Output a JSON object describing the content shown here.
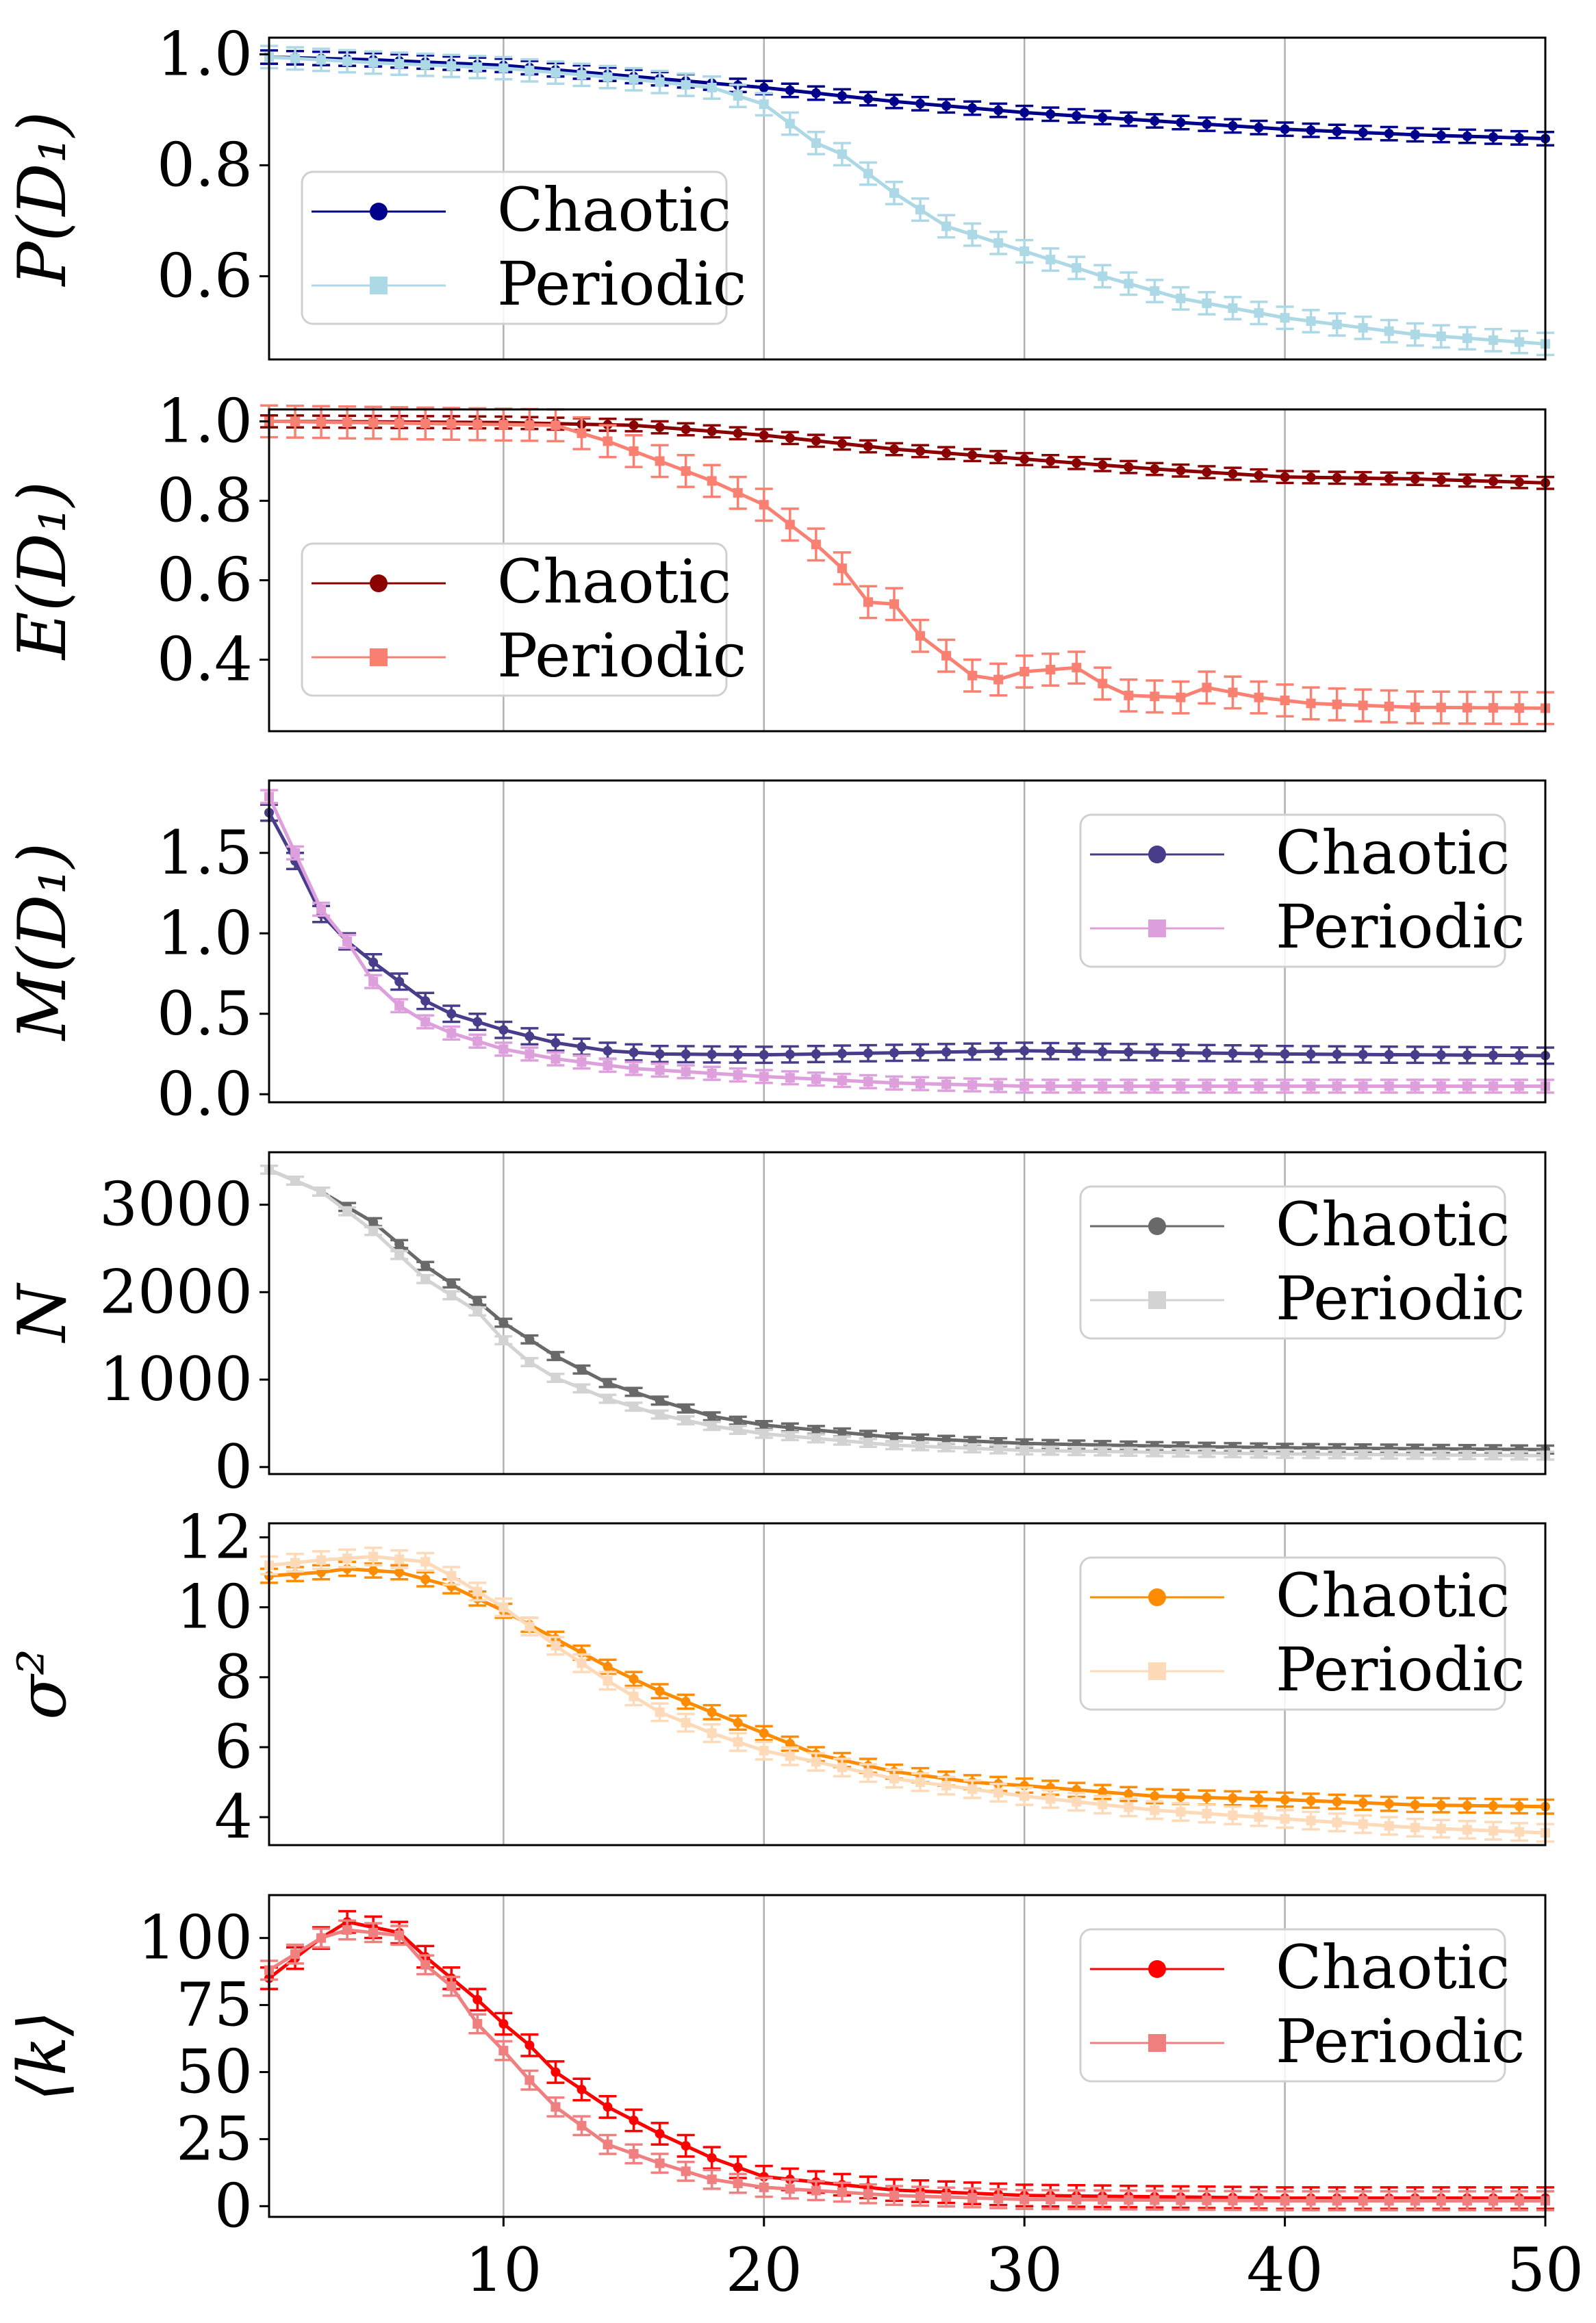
{
  "chart_data": [
    {
      "type": "line",
      "ylabel": "P(D₁)",
      "ylim": [
        0.45,
        1.03
      ],
      "xlim": [
        1,
        50
      ],
      "yticks": [
        0.6,
        0.8,
        1.0
      ],
      "ytick_labels": [
        "0.6",
        "0.8",
        "1.0"
      ],
      "legend_position": "lower-left",
      "grid_x": [
        10,
        20,
        30,
        40
      ],
      "series": [
        {
          "name": "Chaotic",
          "marker": "circle",
          "color": "#00008b",
          "anchors": [
            [
              1,
              0.995
            ],
            [
              5,
              0.99
            ],
            [
              10,
              0.98
            ],
            [
              15,
              0.96
            ],
            [
              20,
              0.94
            ],
            [
              25,
              0.915
            ],
            [
              30,
              0.895
            ],
            [
              35,
              0.88
            ],
            [
              40,
              0.865
            ],
            [
              45,
              0.855
            ],
            [
              50,
              0.848
            ]
          ],
          "err": 0.012
        },
        {
          "name": "Periodic",
          "marker": "square",
          "color": "#add8e6",
          "anchors": [
            [
              1,
              0.995
            ],
            [
              5,
              0.985
            ],
            [
              10,
              0.975
            ],
            [
              15,
              0.955
            ],
            [
              18,
              0.94
            ],
            [
              20,
              0.91
            ],
            [
              22,
              0.84
            ],
            [
              23,
              0.82
            ],
            [
              25,
              0.75
            ],
            [
              27,
              0.69
            ],
            [
              30,
              0.645
            ],
            [
              33,
              0.6
            ],
            [
              36,
              0.56
            ],
            [
              40,
              0.525
            ],
            [
              45,
              0.495
            ],
            [
              50,
              0.478
            ]
          ],
          "err": 0.02
        }
      ]
    },
    {
      "type": "line",
      "ylabel": "E(D₁)",
      "ylim": [
        0.22,
        1.03
      ],
      "xlim": [
        1,
        50
      ],
      "yticks": [
        0.4,
        0.6,
        0.8,
        1.0
      ],
      "ytick_labels": [
        "0.4",
        "0.6",
        "0.8",
        "1.0"
      ],
      "legend_position": "lower-left",
      "grid_x": [
        10,
        20,
        30,
        40
      ],
      "series": [
        {
          "name": "Chaotic",
          "marker": "circle",
          "color": "#8b0000",
          "anchors": [
            [
              1,
              1.0
            ],
            [
              10,
              0.997
            ],
            [
              15,
              0.99
            ],
            [
              20,
              0.965
            ],
            [
              25,
              0.93
            ],
            [
              30,
              0.905
            ],
            [
              35,
              0.88
            ],
            [
              40,
              0.86
            ],
            [
              45,
              0.855
            ],
            [
              50,
              0.845
            ]
          ],
          "err": 0.015
        },
        {
          "name": "Periodic",
          "marker": "square",
          "color": "#fa8072",
          "anchors": [
            [
              1,
              1.0
            ],
            [
              12,
              0.99
            ],
            [
              14,
              0.95
            ],
            [
              16,
              0.9
            ],
            [
              18,
              0.85
            ],
            [
              20,
              0.79
            ],
            [
              22,
              0.69
            ],
            [
              23,
              0.63
            ],
            [
              24,
              0.545
            ],
            [
              25,
              0.54
            ],
            [
              26,
              0.46
            ],
            [
              27,
              0.41
            ],
            [
              28,
              0.36
            ],
            [
              29,
              0.35
            ],
            [
              30,
              0.37
            ],
            [
              31,
              0.375
            ],
            [
              32,
              0.38
            ],
            [
              33,
              0.34
            ],
            [
              34,
              0.31
            ],
            [
              36,
              0.305
            ],
            [
              37,
              0.33
            ],
            [
              39,
              0.305
            ],
            [
              41,
              0.29
            ],
            [
              45,
              0.28
            ],
            [
              50,
              0.278
            ]
          ],
          "err": 0.04
        }
      ]
    },
    {
      "type": "line",
      "ylabel": "M(D₁)",
      "ylim": [
        -0.05,
        1.95
      ],
      "xlim": [
        1,
        50
      ],
      "yticks": [
        0.0,
        0.5,
        1.0,
        1.5
      ],
      "ytick_labels": [
        "0.0",
        "0.5",
        "1.0",
        "1.5"
      ],
      "legend_position": "upper-right",
      "grid_x": [
        10,
        20,
        30,
        40
      ],
      "series": [
        {
          "name": "Chaotic",
          "marker": "circle",
          "color": "#483d8b",
          "anchors": [
            [
              1,
              1.75
            ],
            [
              2,
              1.45
            ],
            [
              3,
              1.12
            ],
            [
              4,
              0.95
            ],
            [
              5,
              0.82
            ],
            [
              6,
              0.7
            ],
            [
              7,
              0.58
            ],
            [
              8,
              0.5
            ],
            [
              9,
              0.45
            ],
            [
              10,
              0.4
            ],
            [
              12,
              0.32
            ],
            [
              14,
              0.27
            ],
            [
              16,
              0.25
            ],
            [
              20,
              0.245
            ],
            [
              30,
              0.27
            ],
            [
              40,
              0.25
            ],
            [
              50,
              0.24
            ]
          ],
          "err": 0.05
        },
        {
          "name": "Periodic",
          "marker": "square",
          "color": "#dda0dd",
          "anchors": [
            [
              1,
              1.85
            ],
            [
              2,
              1.5
            ],
            [
              3,
              1.15
            ],
            [
              4,
              0.95
            ],
            [
              5,
              0.7
            ],
            [
              6,
              0.55
            ],
            [
              7,
              0.45
            ],
            [
              8,
              0.38
            ],
            [
              9,
              0.33
            ],
            [
              10,
              0.28
            ],
            [
              12,
              0.22
            ],
            [
              15,
              0.16
            ],
            [
              20,
              0.11
            ],
            [
              25,
              0.07
            ],
            [
              30,
              0.05
            ],
            [
              40,
              0.05
            ],
            [
              50,
              0.05
            ]
          ],
          "err": 0.04
        }
      ]
    },
    {
      "type": "line",
      "ylabel": "N",
      "ylim": [
        -80,
        3600
      ],
      "xlim": [
        1,
        50
      ],
      "yticks": [
        0,
        1000,
        2000,
        3000
      ],
      "ytick_labels": [
        "0",
        "1000",
        "2000",
        "3000"
      ],
      "legend_position": "upper-right",
      "grid_x": [
        10,
        20,
        30,
        40
      ],
      "series": [
        {
          "name": "Chaotic",
          "marker": "circle",
          "color": "#696969",
          "anchors": [
            [
              1,
              3400
            ],
            [
              3,
              3150
            ],
            [
              5,
              2800
            ],
            [
              7,
              2300
            ],
            [
              9,
              1900
            ],
            [
              10,
              1650
            ],
            [
              12,
              1270
            ],
            [
              14,
              960
            ],
            [
              16,
              760
            ],
            [
              18,
              580
            ],
            [
              20,
              480
            ],
            [
              25,
              340
            ],
            [
              30,
              270
            ],
            [
              35,
              240
            ],
            [
              40,
              220
            ],
            [
              50,
              200
            ]
          ],
          "err": 45
        },
        {
          "name": "Periodic",
          "marker": "square",
          "color": "#d3d3d3",
          "anchors": [
            [
              1,
              3400
            ],
            [
              3,
              3150
            ],
            [
              5,
              2700
            ],
            [
              7,
              2150
            ],
            [
              9,
              1780
            ],
            [
              10,
              1450
            ],
            [
              11,
              1200
            ],
            [
              12,
              1020
            ],
            [
              14,
              780
            ],
            [
              16,
              600
            ],
            [
              18,
              470
            ],
            [
              20,
              380
            ],
            [
              25,
              250
            ],
            [
              30,
              190
            ],
            [
              40,
              150
            ],
            [
              50,
              130
            ]
          ],
          "err": 45
        }
      ]
    },
    {
      "type": "line",
      "ylabel": "σ²",
      "ylim": [
        3.2,
        12.4
      ],
      "xlim": [
        1,
        50
      ],
      "yticks": [
        4,
        6,
        8,
        10,
        12
      ],
      "ytick_labels": [
        "4",
        "6",
        "8",
        "10",
        "12"
      ],
      "legend_position": "upper-right",
      "grid_x": [
        10,
        20,
        30,
        40
      ],
      "series": [
        {
          "name": "Chaotic",
          "marker": "circle",
          "color": "#ff8c00",
          "anchors": [
            [
              1,
              10.9
            ],
            [
              3,
              11.0
            ],
            [
              4,
              11.1
            ],
            [
              6,
              11.0
            ],
            [
              8,
              10.6
            ],
            [
              10,
              9.9
            ],
            [
              12,
              9.1
            ],
            [
              14,
              8.3
            ],
            [
              16,
              7.6
            ],
            [
              18,
              7.0
            ],
            [
              20,
              6.4
            ],
            [
              22,
              5.8
            ],
            [
              25,
              5.3
            ],
            [
              28,
              5.0
            ],
            [
              30,
              4.9
            ],
            [
              35,
              4.6
            ],
            [
              40,
              4.5
            ],
            [
              45,
              4.35
            ],
            [
              50,
              4.3
            ]
          ],
          "err": 0.2
        },
        {
          "name": "Periodic",
          "marker": "square",
          "color": "#ffdab9",
          "anchors": [
            [
              1,
              11.2
            ],
            [
              3,
              11.35
            ],
            [
              5,
              11.45
            ],
            [
              7,
              11.3
            ],
            [
              8,
              10.9
            ],
            [
              10,
              10.0
            ],
            [
              12,
              8.9
            ],
            [
              14,
              7.9
            ],
            [
              16,
              7.0
            ],
            [
              18,
              6.4
            ],
            [
              20,
              5.9
            ],
            [
              25,
              5.1
            ],
            [
              30,
              4.6
            ],
            [
              35,
              4.2
            ],
            [
              40,
              3.95
            ],
            [
              45,
              3.7
            ],
            [
              50,
              3.55
            ]
          ],
          "err": 0.25
        }
      ]
    },
    {
      "type": "line",
      "ylabel": "⟨k⟩",
      "ylim": [
        -4,
        116
      ],
      "xlim": [
        1,
        50
      ],
      "yticks": [
        0,
        25,
        50,
        75,
        100
      ],
      "ytick_labels": [
        "0",
        "25",
        "50",
        "75",
        "100"
      ],
      "legend_position": "upper-right",
      "grid_x": [
        10,
        20,
        30,
        40
      ],
      "xticks": [
        10,
        20,
        30,
        40,
        50
      ],
      "xtick_labels": [
        "10",
        "20",
        "30",
        "40",
        "50"
      ],
      "series": [
        {
          "name": "Chaotic",
          "marker": "circle",
          "color": "#ff0000",
          "anchors": [
            [
              1,
              85
            ],
            [
              3,
              100
            ],
            [
              4,
              106
            ],
            [
              5,
              104
            ],
            [
              6,
              102
            ],
            [
              7,
              93
            ],
            [
              8,
              85
            ],
            [
              9,
              77
            ],
            [
              10,
              68
            ],
            [
              11,
              60
            ],
            [
              12,
              50
            ],
            [
              14,
              37
            ],
            [
              16,
              27
            ],
            [
              18,
              18
            ],
            [
              20,
              11
            ],
            [
              25,
              6
            ],
            [
              30,
              4
            ],
            [
              40,
              3
            ],
            [
              50,
              3
            ]
          ],
          "err": 4
        },
        {
          "name": "Periodic",
          "marker": "square",
          "color": "#f08080",
          "anchors": [
            [
              1,
              88
            ],
            [
              3,
              100
            ],
            [
              4,
              103
            ],
            [
              5,
              102
            ],
            [
              6,
              101
            ],
            [
              7,
              90
            ],
            [
              8,
              82
            ],
            [
              9,
              68
            ],
            [
              10,
              58
            ],
            [
              11,
              47
            ],
            [
              12,
              37
            ],
            [
              14,
              23
            ],
            [
              16,
              16
            ],
            [
              18,
              10
            ],
            [
              20,
              7
            ],
            [
              25,
              4
            ],
            [
              30,
              2.5
            ],
            [
              40,
              2
            ],
            [
              50,
              2
            ]
          ],
          "err": 3.5
        }
      ]
    }
  ]
}
